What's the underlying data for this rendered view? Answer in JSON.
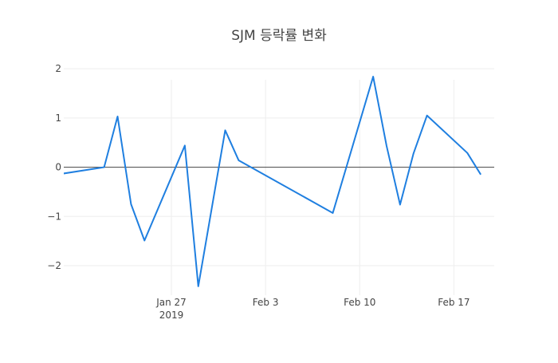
{
  "chart_data": {
    "type": "line",
    "title": "SJM 등락률 변화",
    "xlabel": "",
    "ylabel": "",
    "ylim": [
      -2.6,
      2.1
    ],
    "xlim": [
      "2019-01-19",
      "2019-02-20"
    ],
    "x_ticks": [
      {
        "date": "2019-01-27",
        "label": "Jan 27",
        "sublabel": "2019"
      },
      {
        "date": "2019-02-03",
        "label": "Feb 3",
        "sublabel": ""
      },
      {
        "date": "2019-02-10",
        "label": "Feb 10",
        "sublabel": ""
      },
      {
        "date": "2019-02-17",
        "label": "Feb 17",
        "sublabel": ""
      }
    ],
    "y_ticks": [
      {
        "value": 2,
        "label": "2"
      },
      {
        "value": 1,
        "label": "1"
      },
      {
        "value": 0,
        "label": "0"
      },
      {
        "value": -1,
        "label": "−1"
      },
      {
        "value": -2,
        "label": "−2"
      }
    ],
    "grid": true,
    "zero_line": true,
    "series": [
      {
        "color": "#1f7fe0",
        "x": [
          "2019-01-18",
          "2019-01-22",
          "2019-01-23",
          "2019-01-24",
          "2019-01-25",
          "2019-01-28",
          "2019-01-29",
          "2019-01-31",
          "2019-02-01",
          "2019-02-08",
          "2019-02-11",
          "2019-02-12",
          "2019-02-13",
          "2019-02-14",
          "2019-02-15",
          "2019-02-18",
          "2019-02-19"
        ],
        "values": [
          -0.17,
          0.0,
          1.03,
          -0.75,
          -1.49,
          0.44,
          -2.42,
          0.75,
          0.14,
          -0.93,
          1.84,
          0.43,
          -0.76,
          0.28,
          1.05,
          0.29,
          -0.15
        ]
      }
    ]
  }
}
